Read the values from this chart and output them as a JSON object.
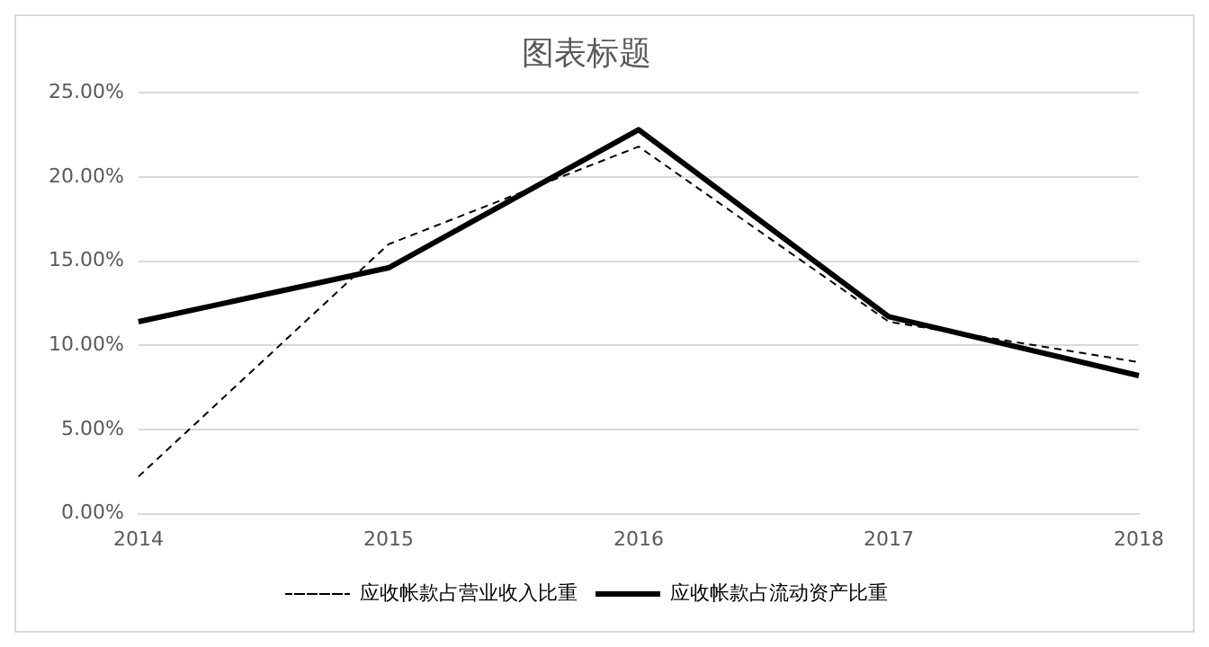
{
  "chart_data": {
    "type": "line",
    "title": "图表标题",
    "categories": [
      "2014",
      "2015",
      "2016",
      "2017",
      "2018"
    ],
    "series": [
      {
        "name": "应收帐款占营业收入比重",
        "color": "#000000",
        "line_style": "dashed",
        "values": [
          2.2,
          16.0,
          21.8,
          11.4,
          9.0
        ]
      },
      {
        "name": "应收帐款占流动资产比重",
        "color": "#000000",
        "line_style": "solid",
        "values": [
          11.4,
          14.6,
          22.8,
          11.7,
          8.2
        ]
      }
    ],
    "ylim": [
      0,
      25
    ],
    "yticks": [
      {
        "value": 0,
        "label": "0.00%"
      },
      {
        "value": 5,
        "label": "5.00%"
      },
      {
        "value": 10,
        "label": "10.00%"
      },
      {
        "value": 15,
        "label": "15.00%"
      },
      {
        "value": 20,
        "label": "20.00%"
      },
      {
        "value": 25,
        "label": "25.00%"
      }
    ],
    "grid": "y",
    "legend": "bottom",
    "marker": "none"
  }
}
